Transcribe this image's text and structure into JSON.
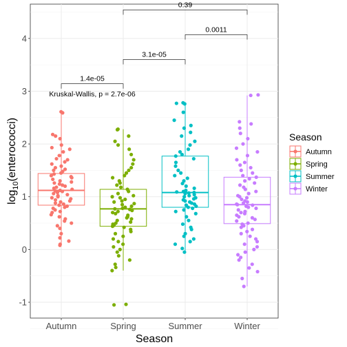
{
  "chart_data": {
    "type": "box",
    "xlabel": "Season",
    "ylabel_main": "log",
    "ylabel_sub": "10",
    "ylabel_rest": "(enterococci)",
    "ylim": [
      -1.3,
      4.65
    ],
    "yticks": [
      -1,
      0,
      1,
      2,
      3,
      4
    ],
    "grid": true,
    "legend": {
      "title": "Season",
      "position": "right"
    },
    "categories": [
      "Autumn",
      "Spring",
      "Summer",
      "Winter"
    ],
    "colors": [
      "#F8766D",
      "#7CAE00",
      "#00BFC4",
      "#C77CFF"
    ],
    "boxes": [
      {
        "name": "Autumn",
        "q1": 0.84,
        "median": 1.12,
        "q3": 1.44,
        "whisker_low": 0.08,
        "whisker_high": 2.6
      },
      {
        "name": "Spring",
        "q1": 0.44,
        "median": 0.77,
        "q3": 1.14,
        "whisker_low": -0.4,
        "whisker_high": 2.28
      },
      {
        "name": "Summer",
        "q1": 0.8,
        "median": 1.08,
        "q3": 1.77,
        "whisker_low": -0.05,
        "whisker_high": 2.78
      },
      {
        "name": "Winter",
        "q1": 0.49,
        "median": 0.85,
        "q3": 1.37,
        "whisker_low": -0.7,
        "whisker_high": 2.92
      }
    ],
    "points": [
      [
        2.61,
        2.59,
        2.18,
        2.15,
        2.1,
        1.98,
        1.93,
        1.9,
        1.85,
        1.78,
        1.72,
        1.7,
        1.66,
        1.62,
        1.58,
        1.55,
        1.52,
        1.5,
        1.48,
        1.45,
        1.43,
        1.4,
        1.38,
        1.36,
        1.33,
        1.3,
        1.28,
        1.26,
        1.24,
        1.22,
        1.2,
        1.18,
        1.16,
        1.14,
        1.12,
        1.11,
        1.1,
        1.08,
        1.06,
        1.04,
        1.02,
        1.0,
        0.98,
        0.96,
        0.94,
        0.92,
        0.9,
        0.88,
        0.86,
        0.84,
        0.82,
        0.8,
        0.78,
        0.75,
        0.72,
        0.7,
        0.66,
        0.62,
        0.58,
        0.54,
        0.5,
        0.45,
        0.4,
        0.3,
        0.22,
        0.16,
        0.1,
        0.08
      ],
      [
        2.28,
        2.27,
        2.15,
        2.05,
        1.98,
        1.9,
        1.8,
        1.7,
        1.62,
        1.55,
        1.5,
        1.45,
        1.4,
        1.36,
        1.3,
        1.26,
        1.22,
        1.18,
        1.14,
        1.1,
        1.06,
        1.02,
        1.0,
        0.98,
        0.95,
        0.92,
        0.9,
        0.87,
        0.85,
        0.82,
        0.8,
        0.78,
        0.77,
        0.76,
        0.74,
        0.72,
        0.7,
        0.68,
        0.65,
        0.62,
        0.6,
        0.58,
        0.55,
        0.52,
        0.5,
        0.48,
        0.46,
        0.44,
        0.42,
        0.38,
        0.34,
        0.3,
        0.25,
        0.2,
        0.15,
        0.1,
        0.05,
        0.0,
        -0.05,
        -0.12,
        -0.2,
        -0.28,
        -0.34,
        -0.4,
        -1.04,
        -1.05
      ],
      [
        2.78,
        2.77,
        2.76,
        2.6,
        2.45,
        2.35,
        2.3,
        2.22,
        2.15,
        2.05,
        1.98,
        1.9,
        1.85,
        1.8,
        1.77,
        1.72,
        1.65,
        1.58,
        1.5,
        1.45,
        1.4,
        1.35,
        1.3,
        1.25,
        1.2,
        1.16,
        1.12,
        1.1,
        1.09,
        1.08,
        1.07,
        1.06,
        1.04,
        1.02,
        1.0,
        0.98,
        0.96,
        0.94,
        0.92,
        0.9,
        0.88,
        0.86,
        0.84,
        0.82,
        0.8,
        0.78,
        0.75,
        0.72,
        0.68,
        0.62,
        0.55,
        0.48,
        0.42,
        0.38,
        0.3,
        0.25,
        0.2,
        0.15,
        0.1,
        0.02,
        -0.05
      ],
      [
        2.93,
        2.92,
        2.42,
        2.38,
        2.3,
        2.2,
        2.1,
        2.0,
        1.92,
        1.85,
        1.78,
        1.7,
        1.65,
        1.6,
        1.55,
        1.5,
        1.45,
        1.4,
        1.37,
        1.34,
        1.3,
        1.26,
        1.22,
        1.18,
        1.14,
        1.1,
        1.06,
        1.02,
        1.0,
        0.98,
        0.95,
        0.92,
        0.9,
        0.88,
        0.86,
        0.85,
        0.84,
        0.82,
        0.8,
        0.78,
        0.75,
        0.72,
        0.7,
        0.68,
        0.65,
        0.62,
        0.6,
        0.57,
        0.54,
        0.5,
        0.48,
        0.45,
        0.42,
        0.38,
        0.34,
        0.3,
        0.25,
        0.2,
        0.15,
        0.1,
        0.05,
        0.0,
        -0.05,
        -0.1,
        -0.15,
        -0.2,
        -0.28,
        -0.35,
        -0.42,
        -0.55,
        -0.7
      ]
    ],
    "comparisons": [
      {
        "from": "Autumn",
        "to": "Spring",
        "y": 3.14,
        "label": "1.4e-05"
      },
      {
        "from": "Spring",
        "to": "Summer",
        "y": 3.6,
        "label": "3.1e-05"
      },
      {
        "from": "Summer",
        "to": "Winter",
        "y": 4.07,
        "label": "0.0011"
      },
      {
        "from": "Spring",
        "to": "Winter",
        "y": 4.54,
        "label": "0.39"
      }
    ],
    "test_label": "Kruskal-Wallis, p = 2.7e-06",
    "test_label_y": 2.9
  }
}
